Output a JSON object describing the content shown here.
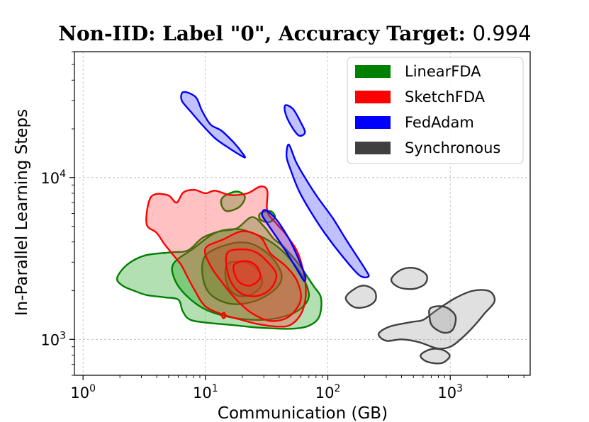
{
  "chart_data": {
    "type": "contour",
    "title_main": "Non-IID: Label \"0\", Accuracy Target: ",
    "title_value": "0.994",
    "xlabel": "Communication (GB)",
    "ylabel": "In-Parallel Learning Steps",
    "xscale": "log",
    "yscale": "log",
    "xlim": [
      0.85,
      4500
    ],
    "ylim": [
      600,
      60000
    ],
    "grid": true,
    "xticks": [
      {
        "value": 1,
        "base": "10",
        "exp": "0"
      },
      {
        "value": 10,
        "base": "10",
        "exp": "1"
      },
      {
        "value": 100,
        "base": "10",
        "exp": "2"
      },
      {
        "value": 1000,
        "base": "10",
        "exp": "3"
      }
    ],
    "yticks": [
      {
        "value": 1000,
        "base": "10",
        "exp": "3"
      },
      {
        "value": 10000,
        "base": "10",
        "exp": "4"
      }
    ],
    "legend_position": "upper right",
    "series": [
      {
        "name": "LinearFDA",
        "color": "#008000",
        "fill": "#009900",
        "regions": [
          [
            [
              1.9,
              2400
            ],
            [
              2.3,
              2900
            ],
            [
              3.2,
              3300
            ],
            [
              5.2,
              3450
            ],
            [
              7.2,
              3550
            ],
            [
              9.5,
              4250
            ],
            [
              13,
              4650
            ],
            [
              18,
              4850
            ],
            [
              24,
              5700
            ],
            [
              30,
              5000
            ],
            [
              36,
              4200
            ],
            [
              44,
              3700
            ],
            [
              58,
              2900
            ],
            [
              76,
              2150
            ],
            [
              88,
              1800
            ],
            [
              85,
              1380
            ],
            [
              70,
              1215
            ],
            [
              52,
              1165
            ],
            [
              35,
              1170
            ],
            [
              24,
              1190
            ],
            [
              16,
              1230
            ],
            [
              10,
              1270
            ],
            [
              7.4,
              1330
            ],
            [
              6.5,
              1500
            ],
            [
              6,
              1760
            ],
            [
              4.6,
              1820
            ],
            [
              3.3,
              1880
            ],
            [
              2.6,
              2000
            ],
            [
              2.1,
              2150
            ]
          ],
          [
            [
              5.5,
              2950
            ],
            [
              8,
              3650
            ],
            [
              12,
              4550
            ],
            [
              18,
              4800
            ],
            [
              26,
              4450
            ],
            [
              36,
              3900
            ],
            [
              48,
              3200
            ],
            [
              62,
              2450
            ],
            [
              70,
              1850
            ],
            [
              58,
              1520
            ],
            [
              40,
              1360
            ],
            [
              26,
              1320
            ],
            [
              16,
              1370
            ],
            [
              10,
              1530
            ],
            [
              7,
              1860
            ],
            [
              5.6,
              2350
            ]
          ],
          [
            [
              10,
              3300
            ],
            [
              15,
              3850
            ],
            [
              22,
              3950
            ],
            [
              30,
              3550
            ],
            [
              38,
              2950
            ],
            [
              42,
              2400
            ],
            [
              36,
              2000
            ],
            [
              25,
              1720
            ],
            [
              16,
              1660
            ],
            [
              11,
              1900
            ],
            [
              9.5,
              2450
            ]
          ],
          [
            [
              15,
              2900
            ],
            [
              21,
              3000
            ],
            [
              27,
              2650
            ],
            [
              29,
              2200
            ],
            [
              24,
              1900
            ],
            [
              18,
              1870
            ],
            [
              15,
              2200
            ]
          ],
          [
            [
              14,
              7600
            ],
            [
              18,
              8200
            ],
            [
              21,
              7600
            ],
            [
              19,
              6600
            ],
            [
              15,
              6200
            ],
            [
              13.5,
              6800
            ]
          ],
          [
            [
              28,
              6000
            ],
            [
              34,
              6200
            ],
            [
              37,
              5700
            ],
            [
              33,
              5300
            ],
            [
              28,
              5500
            ]
          ]
        ]
      },
      {
        "name": "SketchFDA",
        "color": "#ff0000",
        "fill": "#ff3333",
        "regions": [
          [
            [
              3.3,
              5200
            ],
            [
              3.6,
              7600
            ],
            [
              4.9,
              7800
            ],
            [
              5.8,
              7000
            ],
            [
              6.6,
              8100
            ],
            [
              8.1,
              8400
            ],
            [
              10,
              8000
            ],
            [
              12,
              8300
            ],
            [
              16,
              7800
            ],
            [
              22,
              8000
            ],
            [
              28,
              8800
            ],
            [
              32,
              8300
            ],
            [
              32,
              6200
            ],
            [
              38,
              5200
            ],
            [
              46,
              4400
            ],
            [
              58,
              3300
            ],
            [
              66,
              2100
            ],
            [
              62,
              1500
            ],
            [
              50,
              1235
            ],
            [
              38,
              1200
            ],
            [
              26,
              1250
            ],
            [
              19,
              1330
            ],
            [
              14,
              1420
            ],
            [
              10,
              1600
            ],
            [
              8.2,
              2000
            ],
            [
              7,
              2500
            ],
            [
              6.3,
              2900
            ],
            [
              5.4,
              3350
            ],
            [
              4.6,
              3900
            ],
            [
              4,
              4550
            ]
          ],
          [
            [
              10,
              3650
            ],
            [
              14,
              4150
            ],
            [
              20,
              4650
            ],
            [
              28,
              4300
            ],
            [
              34,
              3400
            ],
            [
              45,
              2850
            ],
            [
              56,
              2300
            ],
            [
              60,
              1750
            ],
            [
              48,
              1380
            ],
            [
              34,
              1300
            ],
            [
              24,
              1450
            ],
            [
              18,
              1750
            ],
            [
              14,
              2200
            ],
            [
              11,
              2850
            ]
          ],
          [
            [
              15,
              3400
            ],
            [
              20,
              3600
            ],
            [
              26,
              3450
            ],
            [
              33,
              2950
            ],
            [
              38,
              2500
            ],
            [
              34,
              2050
            ],
            [
              26,
              1850
            ],
            [
              19,
              1950
            ],
            [
              15.5,
              2450
            ]
          ],
          [
            [
              17,
              2850
            ],
            [
              21,
              3050
            ],
            [
              26,
              2850
            ],
            [
              28,
              2400
            ],
            [
              23,
              2150
            ],
            [
              18.5,
              2300
            ]
          ],
          [
            [
              13.6,
              1420
            ],
            [
              14.2,
              1460
            ],
            [
              14.6,
              1390
            ],
            [
              14,
              1350
            ]
          ]
        ]
      },
      {
        "name": "FedAdam",
        "color": "#0000ff",
        "fill": "#3333ff",
        "regions": [
          [
            [
              6.6,
              33800
            ],
            [
              8.3,
              31500
            ],
            [
              9.4,
              25800
            ],
            [
              11,
              21300
            ],
            [
              13.5,
              19500
            ],
            [
              17,
              16500
            ],
            [
              20,
              14200
            ],
            [
              21,
              13300
            ],
            [
              18.5,
              14000
            ],
            [
              15,
              15500
            ],
            [
              12,
              17500
            ],
            [
              9.5,
              21000
            ],
            [
              7.6,
              25500
            ],
            [
              6.4,
              30000
            ]
          ],
          [
            [
              45,
              28000
            ],
            [
              52,
              26500
            ],
            [
              60,
              22000
            ],
            [
              65,
              19000
            ],
            [
              58,
              18200
            ],
            [
              50,
              21000
            ],
            [
              45,
              25000
            ]
          ],
          [
            [
              48,
              16000
            ],
            [
              55,
              12500
            ],
            [
              65,
              10000
            ],
            [
              82,
              7600
            ],
            [
              110,
              5600
            ],
            [
              145,
              4000
            ],
            [
              200,
              2750
            ],
            [
              215,
              2450
            ],
            [
              180,
              2500
            ],
            [
              130,
              3300
            ],
            [
              95,
              4500
            ],
            [
              72,
              6200
            ],
            [
              58,
              8300
            ],
            [
              50,
              11000
            ],
            [
              46,
              13500
            ]
          ],
          [
            [
              31,
              6300
            ],
            [
              38,
              5500
            ],
            [
              48,
              4200
            ],
            [
              56,
              3300
            ],
            [
              65,
              2500
            ],
            [
              64,
              2300
            ],
            [
              56,
              2700
            ],
            [
              46,
              3450
            ],
            [
              38,
              4300
            ],
            [
              32,
              5200
            ],
            [
              29,
              5900
            ]
          ]
        ]
      },
      {
        "name": "Synchronous",
        "color": "#404040",
        "fill": "#999999",
        "regions": [
          [
            [
              140,
              1800
            ],
            [
              165,
              2050
            ],
            [
              200,
              2150
            ],
            [
              240,
              2000
            ],
            [
              245,
              1750
            ],
            [
              210,
              1600
            ],
            [
              165,
              1580
            ]
          ],
          [
            [
              330,
              2350
            ],
            [
              400,
              2700
            ],
            [
              520,
              2750
            ],
            [
              640,
              2500
            ],
            [
              620,
              2200
            ],
            [
              500,
              2050
            ],
            [
              380,
              2100
            ]
          ],
          [
            [
              480,
              1280
            ],
            [
              600,
              1320
            ],
            [
              760,
              1500
            ],
            [
              1100,
              1800
            ],
            [
              1550,
              2000
            ],
            [
              2100,
              1980
            ],
            [
              2300,
              1720
            ],
            [
              1900,
              1440
            ],
            [
              1550,
              1200
            ],
            [
              1250,
              1020
            ],
            [
              1000,
              900
            ],
            [
              780,
              880
            ],
            [
              560,
              960
            ],
            [
              400,
              1000
            ],
            [
              300,
              980
            ],
            [
              260,
              1080
            ],
            [
              320,
              1200
            ]
          ],
          [
            [
              690,
              1560
            ],
            [
              900,
              1590
            ],
            [
              1100,
              1400
            ],
            [
              1050,
              1150
            ],
            [
              880,
              1100
            ],
            [
              720,
              1200
            ],
            [
              680,
              1350
            ]
          ],
          [
            [
              580,
              810
            ],
            [
              700,
              870
            ],
            [
              870,
              860
            ],
            [
              990,
              790
            ],
            [
              860,
              715
            ],
            [
              680,
              720
            ],
            [
              590,
              760
            ]
          ]
        ]
      }
    ]
  }
}
